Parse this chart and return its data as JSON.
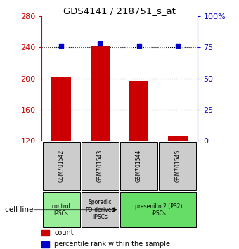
{
  "title": "GDS4141 / 218751_s_at",
  "samples": [
    "GSM701542",
    "GSM701543",
    "GSM701544",
    "GSM701545"
  ],
  "counts": [
    202,
    242,
    197,
    126
  ],
  "percentiles": [
    76,
    78,
    76,
    76
  ],
  "ylim_left": [
    120,
    280
  ],
  "ylim_right": [
    0,
    100
  ],
  "yticks_left": [
    120,
    160,
    200,
    240,
    280
  ],
  "yticks_right": [
    0,
    25,
    50,
    75,
    100
  ],
  "ytick_labels_right": [
    "0",
    "25",
    "50",
    "75",
    "100%"
  ],
  "bar_color": "#cc0000",
  "dot_color": "#0000cc",
  "bar_bottom": 120,
  "groups": [
    {
      "label": "control\nIPSCs",
      "samples": [
        0
      ],
      "color": "#99ee99"
    },
    {
      "label": "Sporadic\nPD-derived\niPSCs",
      "samples": [
        1
      ],
      "color": "#cccccc"
    },
    {
      "label": "presenilin 2 (PS2)\niPSCs",
      "samples": [
        2,
        3
      ],
      "color": "#66dd66"
    }
  ],
  "legend_items": [
    {
      "color": "#cc0000",
      "label": "count"
    },
    {
      "color": "#0000cc",
      "label": "percentile rank within the sample"
    }
  ],
  "cell_line_label": "cell line",
  "background_color": "#ffffff",
  "tick_color_left": "#cc0000",
  "tick_color_right": "#0000cc"
}
